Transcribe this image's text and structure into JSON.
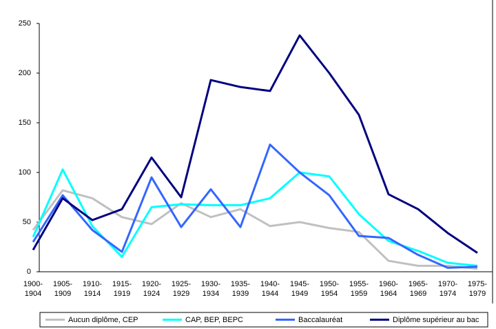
{
  "chart_data": {
    "type": "line",
    "categories": [
      "1900-1904",
      "1905-1909",
      "1910-1914",
      "1915-1919",
      "1920-1924",
      "1925-1929",
      "1930-1934",
      "1935-1939",
      "1940-1944",
      "1945-1949",
      "1950-1954",
      "1955-1959",
      "1960-1964",
      "1965-1969",
      "1970-1974",
      "1975-1979"
    ],
    "ylim": [
      0,
      250
    ],
    "yticks": [
      0,
      50,
      100,
      150,
      200,
      250
    ],
    "grid": false,
    "legend": "bottom",
    "series": [
      {
        "name": "Aucun diplôme, CEP",
        "color": "#c0c0c0",
        "values": [
          42,
          82,
          74,
          55,
          48,
          69,
          55,
          63,
          46,
          50,
          44,
          40,
          11,
          6,
          6,
          3
        ]
      },
      {
        "name": "CAP, BEP, BEPC",
        "color": "#00ffff",
        "values": [
          35,
          103,
          46,
          15,
          65,
          68,
          67,
          67,
          74,
          100,
          96,
          58,
          31,
          21,
          9,
          6
        ]
      },
      {
        "name": "Baccalauréat",
        "color": "#3366ff",
        "values": [
          30,
          77,
          42,
          20,
          95,
          45,
          83,
          45,
          128,
          100,
          77,
          36,
          34,
          17,
          4,
          5
        ]
      },
      {
        "name": "Diplôme supérieur au bac",
        "color": "#000080",
        "values": [
          22,
          74,
          52,
          63,
          115,
          75,
          193,
          186,
          182,
          238,
          200,
          158,
          78,
          63,
          39,
          19
        ]
      }
    ]
  }
}
